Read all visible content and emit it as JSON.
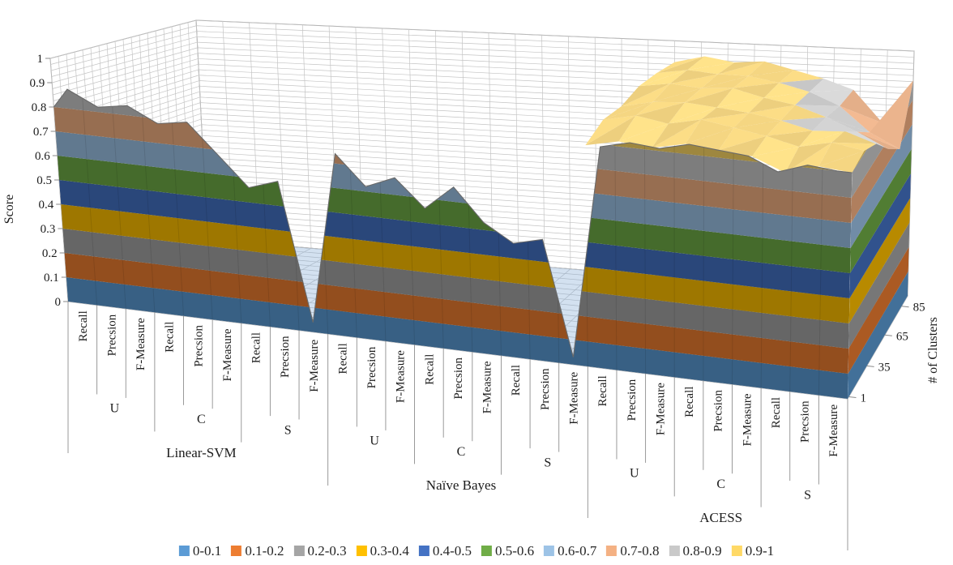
{
  "value_axis": {
    "title": "Score",
    "tick_labels": [
      "0",
      "0.1",
      "0.2",
      "0.3",
      "0.4",
      "0.5",
      "0.6",
      "0.7",
      "0.8",
      "0.9",
      "1"
    ]
  },
  "depth_axis": {
    "title": "# of Clusters",
    "tick_labels": [
      "1",
      "35",
      "65",
      "85"
    ]
  },
  "category_axis": {
    "groups": [
      {
        "label": "Linear-SVM",
        "subgroups": [
          {
            "label": "U",
            "metrics": [
              "Recall",
              "Precsion",
              "F-Measure"
            ]
          },
          {
            "label": "C",
            "metrics": [
              "Recall",
              "Precsion",
              "F-Measure"
            ]
          },
          {
            "label": "S",
            "metrics": [
              "Recall",
              "Precsion",
              "F-Measure"
            ]
          }
        ]
      },
      {
        "label": "Naïve Bayes",
        "subgroups": [
          {
            "label": "U",
            "metrics": [
              "Recall",
              "Precsion",
              "F-Measure"
            ]
          },
          {
            "label": "C",
            "metrics": [
              "Recall",
              "Precsion",
              "F-Measure"
            ]
          },
          {
            "label": "S",
            "metrics": [
              "Recall",
              "Precsion",
              "F-Measure"
            ]
          }
        ]
      },
      {
        "label": "ACESS",
        "subgroups": [
          {
            "label": "U",
            "metrics": [
              "Recall",
              "Precsion",
              "F-Measure"
            ]
          },
          {
            "label": "C",
            "metrics": [
              "Recall",
              "Precsion",
              "F-Measure"
            ]
          },
          {
            "label": "S",
            "metrics": [
              "Recall",
              "Precsion",
              "F-Measure"
            ]
          }
        ]
      }
    ]
  },
  "chart_data": {
    "type": "surface3d",
    "title": "",
    "score_axis": {
      "title": "Score",
      "min": 0,
      "max": 1,
      "step": 0.1
    },
    "clusters_axis": {
      "title": "# of Clusters",
      "tick_labels": [
        "1",
        "35",
        "65",
        "85"
      ]
    },
    "bands": [
      {
        "label": "0-0.1",
        "color": "#5B9BD5"
      },
      {
        "label": "0.1-0.2",
        "color": "#ED7D31"
      },
      {
        "label": "0.2-0.3",
        "color": "#A5A5A5"
      },
      {
        "label": "0.3-0.4",
        "color": "#FFC000"
      },
      {
        "label": "0.4-0.5",
        "color": "#4472C4"
      },
      {
        "label": "0.5-0.6",
        "color": "#70AD47"
      },
      {
        "label": "0.6-0.7",
        "color": "#9DC3E6"
      },
      {
        "label": "0.7-0.8",
        "color": "#F4B183"
      },
      {
        "label": "0.8-0.9",
        "color": "#C9C9C9"
      },
      {
        "label": "0.9-1",
        "color": "#FFD966"
      }
    ],
    "edge_scores": {
      "left": 0.8,
      "right": 0.9
    },
    "groups": [
      {
        "classifier": "Linear-SVM",
        "front_scores": {
          "U": [
            0.88,
            0.82,
            0.84
          ],
          "C": [
            0.78,
            0.8,
            0.68
          ],
          "S": [
            0.56,
            0.6,
            0.04
          ]
        },
        "note": "scores ~0 for cluster counts beyond 1 (surface falls to floor behind front row)"
      },
      {
        "classifier": "Naïve Bayes",
        "front_scores": {
          "U": [
            0.74,
            0.62,
            0.67
          ],
          "C": [
            0.56,
            0.66,
            0.53
          ],
          "S": [
            0.46,
            0.49,
            0.03
          ]
        },
        "note": "scores ~0 for cluster counts beyond 1 (surface falls to floor behind front row)"
      },
      {
        "classifier": "ACESS",
        "front_scores": {
          "U": [
            0.89,
            0.92,
            0.91
          ],
          "C": [
            0.94,
            0.93,
            0.92
          ],
          "S": [
            0.87,
            0.91,
            0.9
          ]
        },
        "note": "high plateau (~0.85-0.97) across all cluster counts; dips to ~0.65-0.75 for S metrics at high cluster counts"
      }
    ],
    "acess_plateau": {
      "description": "approximate Score over ACESS categories (left→right) per cluster depth row (front→back)",
      "rows": [
        [
          0.89,
          0.92,
          0.91,
          0.94,
          0.93,
          0.92,
          0.87,
          0.91,
          0.9
        ],
        [
          0.93,
          0.96,
          0.94,
          0.97,
          0.95,
          0.93,
          0.9,
          0.93,
          0.91
        ],
        [
          0.92,
          0.95,
          0.96,
          0.95,
          0.94,
          0.92,
          0.89,
          0.9,
          0.86
        ],
        [
          0.94,
          0.96,
          0.95,
          0.96,
          0.93,
          0.91,
          0.87,
          0.82,
          0.76
        ],
        [
          0.93,
          0.95,
          0.94,
          0.94,
          0.92,
          0.89,
          0.84,
          0.74,
          0.68
        ],
        [
          0.91,
          0.94,
          0.92,
          0.93,
          0.9,
          0.87,
          0.83,
          0.7,
          0.88
        ]
      ]
    },
    "back_row_score_svm_nb": 0.02
  },
  "legend_note": "bands legend shown below chart"
}
